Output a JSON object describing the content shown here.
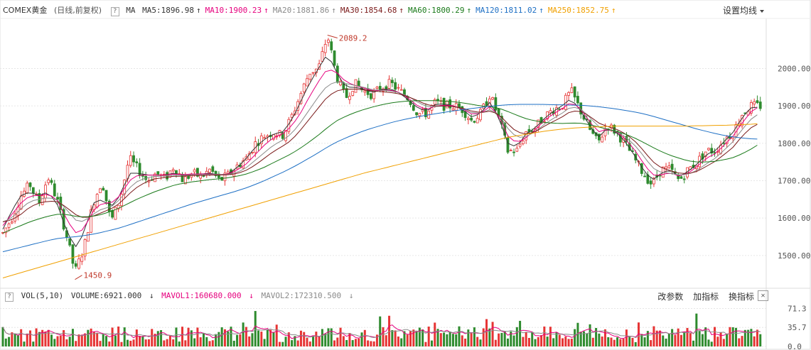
{
  "header": {
    "instrument": "COMEX黄金",
    "mode": "(日线,前复权)",
    "help": "?",
    "ma_label": "MA",
    "settings_label": "设置均线"
  },
  "ma_legend": [
    {
      "label": "MA5:1896.98",
      "color": "#333333",
      "arrow": "↑"
    },
    {
      "label": "MA10:1900.23",
      "color": "#e6007e",
      "arrow": "↑"
    },
    {
      "label": "MA20:1881.86",
      "color": "#8a8a8a",
      "arrow": "↑"
    },
    {
      "label": "MA30:1854.68",
      "color": "#7a1a1a",
      "arrow": "↑"
    },
    {
      "label": "MA60:1800.29",
      "color": "#1a7a1a",
      "arrow": "↑"
    },
    {
      "label": "MA120:1811.02",
      "color": "#1d6fc4",
      "arrow": "↑"
    },
    {
      "label": "MA250:1852.75",
      "color": "#f0a000",
      "arrow": "↑"
    }
  ],
  "volume_header": {
    "help": "?",
    "name": "VOL(5,10)",
    "volume": "VOLUME:6921.000",
    "volume_arrow": "↓",
    "mavol1": "MAVOL1:160680.000",
    "mavol1_arrow": "↓",
    "mavol2": "MAVOL2:172310.500",
    "mavol2_arrow": "↓",
    "tools": [
      "改参数",
      "加指标",
      "换指标"
    ],
    "close": "✕"
  },
  "colors": {
    "up": "#e63434",
    "down": "#2e8b2e",
    "grid": "#e6e6e6",
    "axis_text": "#555555"
  },
  "chart_data": [
    {
      "type": "candlestick",
      "y_ticks": [
        "2000.00",
        "1900.00",
        "1800.00",
        "1700.00",
        "1600.00",
        "1500.00"
      ],
      "ylim": [
        1420,
        2130
      ],
      "annotations": [
        {
          "text": "2089.2",
          "value": 2089.2
        },
        {
          "text": "1450.9",
          "value": 1450.9
        }
      ],
      "close_path": [
        1560,
        1600,
        1660,
        1690,
        1640,
        1710,
        1650,
        1560,
        1455,
        1520,
        1640,
        1700,
        1590,
        1650,
        1760,
        1730,
        1700,
        1720,
        1705,
        1740,
        1700,
        1720,
        1710,
        1730,
        1700,
        1715,
        1740,
        1760,
        1800,
        1820,
        1830,
        1820,
        1870,
        1930,
        1990,
        2000,
        2089,
        1980,
        1920,
        1960,
        1940,
        1930,
        1950,
        1960,
        1940,
        1920,
        1880,
        1880,
        1910,
        1900,
        1900,
        1890,
        1860,
        1880,
        1930,
        1870,
        1780,
        1780,
        1830,
        1840,
        1870,
        1890,
        1900,
        1940,
        1890,
        1840,
        1800,
        1850,
        1830,
        1800,
        1760,
        1720,
        1690,
        1730,
        1730,
        1700,
        1730,
        1750,
        1780,
        1780,
        1810,
        1830,
        1880,
        1900,
        1900
      ],
      "ma_series": [
        {
          "name": "MA5",
          "color": "#333333",
          "values": [
            1570,
            1620,
            1660,
            1670,
            1660,
            1670,
            1640,
            1570,
            1520,
            1560,
            1640,
            1650,
            1630,
            1660,
            1720,
            1720,
            1715,
            1715,
            1715,
            1720,
            1715,
            1718,
            1718,
            1720,
            1715,
            1718,
            1735,
            1760,
            1790,
            1810,
            1825,
            1830,
            1860,
            1910,
            1960,
            2000,
            2040,
            1990,
            1950,
            1950,
            1945,
            1935,
            1945,
            1945,
            1935,
            1915,
            1895,
            1885,
            1905,
            1905,
            1900,
            1890,
            1870,
            1880,
            1910,
            1870,
            1800,
            1790,
            1825,
            1840,
            1865,
            1885,
            1900,
            1920,
            1890,
            1850,
            1815,
            1840,
            1830,
            1805,
            1770,
            1730,
            1700,
            1720,
            1730,
            1710,
            1725,
            1745,
            1770,
            1780,
            1805,
            1830,
            1870,
            1895,
            1897
          ]
        },
        {
          "name": "MA10",
          "color": "#e6007e",
          "values": [
            1580,
            1610,
            1640,
            1660,
            1660,
            1665,
            1650,
            1600,
            1560,
            1570,
            1620,
            1640,
            1640,
            1660,
            1700,
            1715,
            1715,
            1715,
            1715,
            1718,
            1716,
            1718,
            1718,
            1718,
            1716,
            1718,
            1728,
            1745,
            1770,
            1795,
            1815,
            1825,
            1845,
            1880,
            1925,
            1965,
            2000,
            1990,
            1965,
            1955,
            1948,
            1940,
            1942,
            1942,
            1936,
            1920,
            1900,
            1890,
            1900,
            1902,
            1900,
            1892,
            1878,
            1880,
            1898,
            1875,
            1820,
            1800,
            1815,
            1835,
            1860,
            1878,
            1892,
            1910,
            1895,
            1860,
            1830,
            1838,
            1832,
            1812,
            1785,
            1748,
            1715,
            1715,
            1722,
            1712,
            1720,
            1738,
            1760,
            1772,
            1795,
            1820,
            1855,
            1885,
            1900
          ]
        },
        {
          "name": "MA20",
          "color": "#8a8a8a",
          "values": [
            1590,
            1600,
            1625,
            1645,
            1650,
            1655,
            1650,
            1625,
            1595,
            1590,
            1610,
            1625,
            1630,
            1650,
            1680,
            1700,
            1708,
            1712,
            1712,
            1715,
            1714,
            1716,
            1716,
            1717,
            1716,
            1717,
            1722,
            1735,
            1755,
            1775,
            1795,
            1808,
            1825,
            1855,
            1890,
            1925,
            1955,
            1965,
            1960,
            1955,
            1950,
            1943,
            1942,
            1940,
            1935,
            1925,
            1910,
            1898,
            1898,
            1900,
            1898,
            1893,
            1882,
            1880,
            1890,
            1878,
            1840,
            1815,
            1818,
            1830,
            1850,
            1866,
            1880,
            1898,
            1893,
            1872,
            1845,
            1838,
            1832,
            1818,
            1797,
            1768,
            1735,
            1722,
            1720,
            1715,
            1717,
            1728,
            1745,
            1760,
            1782,
            1805,
            1838,
            1865,
            1882
          ]
        },
        {
          "name": "MA30",
          "color": "#7a1a1a",
          "values": [
            1590,
            1595,
            1610,
            1630,
            1640,
            1645,
            1645,
            1630,
            1610,
            1600,
            1605,
            1615,
            1625,
            1640,
            1665,
            1685,
            1698,
            1706,
            1708,
            1712,
            1712,
            1714,
            1714,
            1715,
            1715,
            1716,
            1719,
            1728,
            1742,
            1760,
            1778,
            1792,
            1808,
            1835,
            1865,
            1895,
            1925,
            1940,
            1945,
            1945,
            1943,
            1940,
            1938,
            1936,
            1932,
            1924,
            1914,
            1903,
            1900,
            1900,
            1898,
            1894,
            1886,
            1882,
            1886,
            1878,
            1852,
            1830,
            1825,
            1830,
            1845,
            1858,
            1870,
            1886,
            1886,
            1874,
            1855,
            1845,
            1838,
            1826,
            1808,
            1782,
            1752,
            1735,
            1727,
            1720,
            1719,
            1725,
            1738,
            1752,
            1770,
            1790,
            1820,
            1842,
            1855
          ]
        },
        {
          "name": "MA60",
          "color": "#1a7a1a",
          "values": [
            1560,
            1570,
            1580,
            1590,
            1598,
            1605,
            1610,
            1610,
            1605,
            1603,
            1605,
            1610,
            1618,
            1628,
            1640,
            1652,
            1662,
            1672,
            1680,
            1688,
            1693,
            1697,
            1700,
            1703,
            1705,
            1708,
            1712,
            1718,
            1726,
            1736,
            1748,
            1760,
            1772,
            1787,
            1804,
            1822,
            1842,
            1860,
            1872,
            1882,
            1890,
            1897,
            1903,
            1908,
            1911,
            1913,
            1914,
            1914,
            1914,
            1913,
            1911,
            1908,
            1904,
            1900,
            1898,
            1894,
            1885,
            1875,
            1866,
            1860,
            1856,
            1854,
            1853,
            1854,
            1854,
            1850,
            1844,
            1838,
            1832,
            1825,
            1815,
            1803,
            1790,
            1778,
            1768,
            1760,
            1753,
            1750,
            1750,
            1752,
            1756,
            1762,
            1772,
            1785,
            1800
          ]
        },
        {
          "name": "MA120",
          "color": "#1d6fc4",
          "values": [
            1510,
            1516,
            1522,
            1528,
            1534,
            1540,
            1545,
            1548,
            1550,
            1553,
            1557,
            1562,
            1568,
            1574,
            1582,
            1590,
            1598,
            1606,
            1614,
            1622,
            1630,
            1638,
            1645,
            1652,
            1659,
            1666,
            1673,
            1681,
            1690,
            1700,
            1711,
            1722,
            1734,
            1747,
            1761,
            1775,
            1790,
            1803,
            1814,
            1824,
            1833,
            1841,
            1848,
            1855,
            1861,
            1866,
            1871,
            1875,
            1879,
            1883,
            1887,
            1890,
            1893,
            1896,
            1899,
            1901,
            1903,
            1904,
            1904,
            1904,
            1904,
            1903,
            1903,
            1902,
            1902,
            1900,
            1898,
            1895,
            1892,
            1888,
            1884,
            1879,
            1873,
            1866,
            1859,
            1852,
            1845,
            1838,
            1832,
            1826,
            1821,
            1817,
            1814,
            1812,
            1811
          ]
        },
        {
          "name": "MA250",
          "color": "#f0a000",
          "values": [
            1440,
            1447,
            1454,
            1461,
            1468,
            1475,
            1482,
            1489,
            1496,
            1503,
            1510,
            1517,
            1524,
            1531,
            1538,
            1545,
            1552,
            1559,
            1566,
            1573,
            1580,
            1587,
            1594,
            1601,
            1608,
            1615,
            1622,
            1629,
            1636,
            1643,
            1650,
            1657,
            1664,
            1671,
            1678,
            1685,
            1692,
            1699,
            1706,
            1713,
            1720,
            1726,
            1732,
            1738,
            1744,
            1750,
            1756,
            1762,
            1768,
            1774,
            1780,
            1786,
            1792,
            1798,
            1804,
            1810,
            1816,
            1820,
            1824,
            1828,
            1832,
            1835,
            1838,
            1840,
            1842,
            1843,
            1844,
            1845,
            1846,
            1846,
            1846,
            1846,
            1846,
            1846,
            1846,
            1846,
            1846,
            1847,
            1847,
            1848,
            1848,
            1849,
            1850,
            1851,
            1853
          ]
        }
      ]
    },
    {
      "type": "bar",
      "title": "VOL(5,10)",
      "y_ticks": [
        "71.3",
        "35.7",
        "0.0"
      ],
      "ylim": [
        0,
        80
      ],
      "mavol_series": [
        {
          "name": "MAVOL1",
          "color": "#e6007e"
        },
        {
          "name": "MAVOL2",
          "color": "#8a8a8a"
        }
      ]
    }
  ]
}
